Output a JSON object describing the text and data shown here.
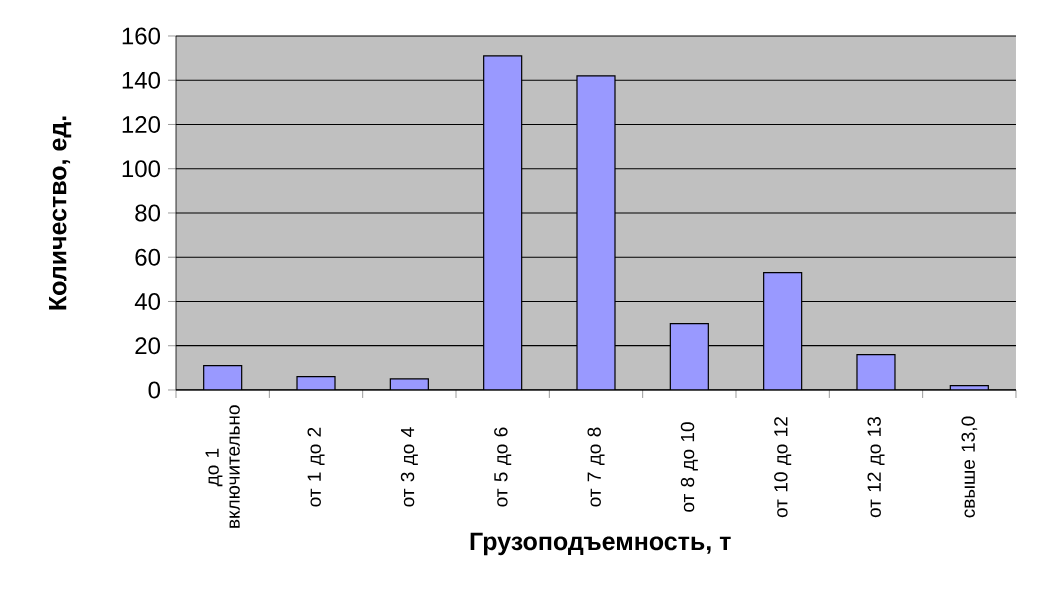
{
  "chart_data": {
    "type": "bar",
    "xlabel": "Грузоподъемность, т",
    "ylabel": "Количество, ед.",
    "categories": [
      "до 1 включительно",
      "от 1 до 2",
      "от 3 до 4",
      "от 5 до 6",
      "от 7 до 8",
      "от 8 до 10",
      "от 10 до 12",
      "от 12 до 13",
      "свыше 13,0"
    ],
    "values": [
      11,
      6,
      5,
      151,
      142,
      30,
      53,
      16,
      2
    ],
    "color": "#9999ff",
    "ylim": [
      0,
      160
    ],
    "yticks": [
      0,
      20,
      40,
      60,
      80,
      100,
      120,
      140,
      160
    ],
    "grid": "y"
  }
}
